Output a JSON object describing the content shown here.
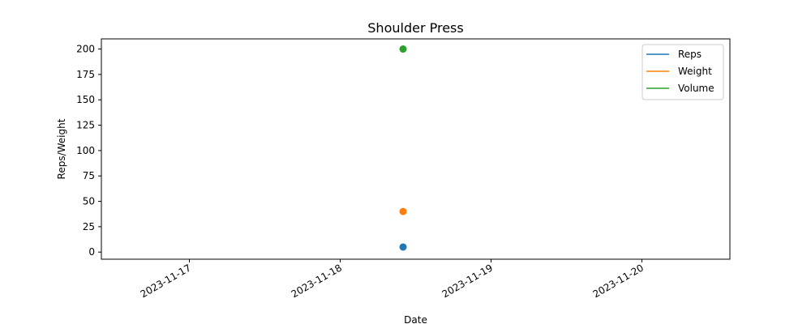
{
  "chart_data": {
    "type": "scatter",
    "title": "Shoulder Press",
    "xlabel": "Date",
    "ylabel": "Reps/Weight",
    "x_type": "date",
    "xlim": [
      "2023-11-16 10:00",
      "2023-11-20 14:00"
    ],
    "ylim": [
      -7,
      210
    ],
    "x_ticks": [
      "2023-11-17",
      "2023-11-18",
      "2023-11-19",
      "2023-11-20"
    ],
    "y_ticks": [
      0,
      25,
      50,
      75,
      100,
      125,
      150,
      175,
      200
    ],
    "grid": false,
    "legend_position": "top-right",
    "series": [
      {
        "name": "Reps",
        "color": "#1f77b4",
        "x": [
          "2023-11-18 10:00"
        ],
        "y": [
          5
        ]
      },
      {
        "name": "Weight",
        "color": "#ff7f0e",
        "x": [
          "2023-11-18 10:00"
        ],
        "y": [
          40
        ]
      },
      {
        "name": "Volume",
        "color": "#2ca02c",
        "x": [
          "2023-11-18 10:00"
        ],
        "y": [
          200
        ]
      }
    ]
  }
}
